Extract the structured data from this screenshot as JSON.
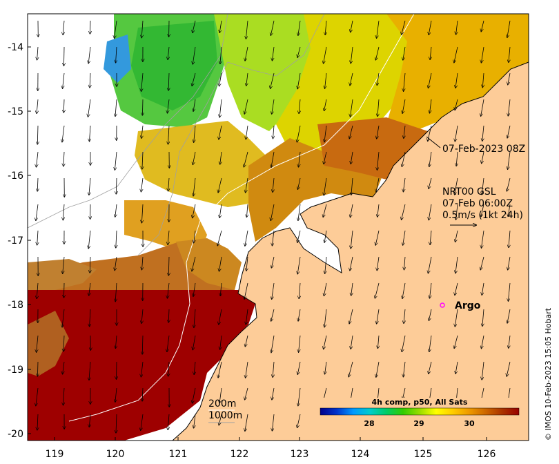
{
  "map": {
    "x_ticks": [
      "119",
      "120",
      "121",
      "122",
      "123",
      "124",
      "125",
      "126"
    ],
    "y_ticks": [
      "-14",
      "-15",
      "-16",
      "-17",
      "-18",
      "-19",
      "-20"
    ],
    "land_color": "#fdcc98",
    "timestamp_label": "07-Feb-2023 08Z",
    "current": {
      "line1": "NRT00 GSL",
      "line2": "07-Feb 06:00Z",
      "line3": "0.5m/s (1kt 24h)"
    },
    "argo_label": "Argo",
    "argo_color": "#ff00ff",
    "contours": {
      "c200": "200m",
      "c1000": "1000m"
    },
    "colorbar": {
      "title": "4h comp, p50, All Sats",
      "ticks": [
        "28",
        "29",
        "30"
      ],
      "colors": [
        "#00008b",
        "#0033cc",
        "#0099ff",
        "#00cccc",
        "#00cc66",
        "#33cc00",
        "#99dd00",
        "#ffff00",
        "#ffcc00",
        "#ee9900",
        "#cc6600",
        "#aa3300",
        "#990000"
      ]
    },
    "credit": "© IMOS 10-Feb-2023 15:05 Hobart"
  }
}
